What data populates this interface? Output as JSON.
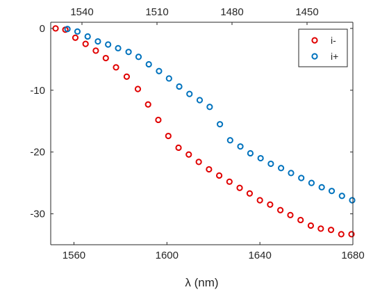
{
  "chart_data": {
    "type": "scatter",
    "xlabel": "λ (nm)",
    "xlim": [
      1550,
      1680
    ],
    "ylim": [
      -35,
      1
    ],
    "x_ticks": [
      1560,
      1600,
      1640,
      1680
    ],
    "y_ticks": [
      0,
      -10,
      -20,
      -30
    ],
    "top_axis_ticks": [
      1540,
      1510,
      1480,
      1450
    ],
    "grid": false,
    "legend_position": "top-right",
    "series": [
      {
        "name": "i-",
        "color": "#e00000",
        "marker": "circle",
        "x": [
          1552.1,
          1556.3,
          1560.6,
          1565.0,
          1569.4,
          1573.7,
          1578.1,
          1582.7,
          1587.5,
          1591.9,
          1596.3,
          1600.6,
          1605.0,
          1609.4,
          1613.7,
          1618.1,
          1622.5,
          1626.9,
          1631.3,
          1635.6,
          1640.0,
          1644.4,
          1648.8,
          1653.1,
          1657.5,
          1661.9,
          1666.2,
          1670.6,
          1675.0,
          1679.4
        ],
        "y": [
          0.0,
          -0.2,
          -1.5,
          -2.5,
          -3.6,
          -4.8,
          -6.3,
          -7.8,
          -9.8,
          -12.3,
          -14.8,
          -17.4,
          -19.3,
          -20.4,
          -21.6,
          -22.8,
          -23.8,
          -24.8,
          -25.8,
          -26.7,
          -27.8,
          -28.5,
          -29.4,
          -30.2,
          -31.0,
          -31.9,
          -32.4,
          -32.6,
          -33.3,
          -33.3
        ]
      },
      {
        "name": "i+",
        "color": "#0072bd",
        "marker": "circle",
        "x": [
          1557.2,
          1561.5,
          1565.9,
          1570.3,
          1574.7,
          1579.0,
          1583.5,
          1587.8,
          1592.2,
          1596.6,
          1600.9,
          1605.3,
          1609.7,
          1614.1,
          1618.4,
          1622.8,
          1627.2,
          1631.6,
          1635.9,
          1640.3,
          1644.7,
          1649.1,
          1653.4,
          1657.8,
          1662.2,
          1666.6,
          1670.9,
          1675.3,
          1679.7,
          1684.1
        ],
        "y": [
          -0.1,
          -0.5,
          -1.3,
          -2.1,
          -2.6,
          -3.2,
          -3.8,
          -4.6,
          -5.8,
          -6.9,
          -8.1,
          -9.4,
          -10.6,
          -11.6,
          -12.7,
          -15.5,
          -18.1,
          -19.1,
          -20.2,
          -21.0,
          -21.9,
          -22.6,
          -23.4,
          -24.2,
          -25.0,
          -25.7,
          -26.3,
          -27.1,
          -27.8,
          -28.4
        ]
      }
    ]
  }
}
